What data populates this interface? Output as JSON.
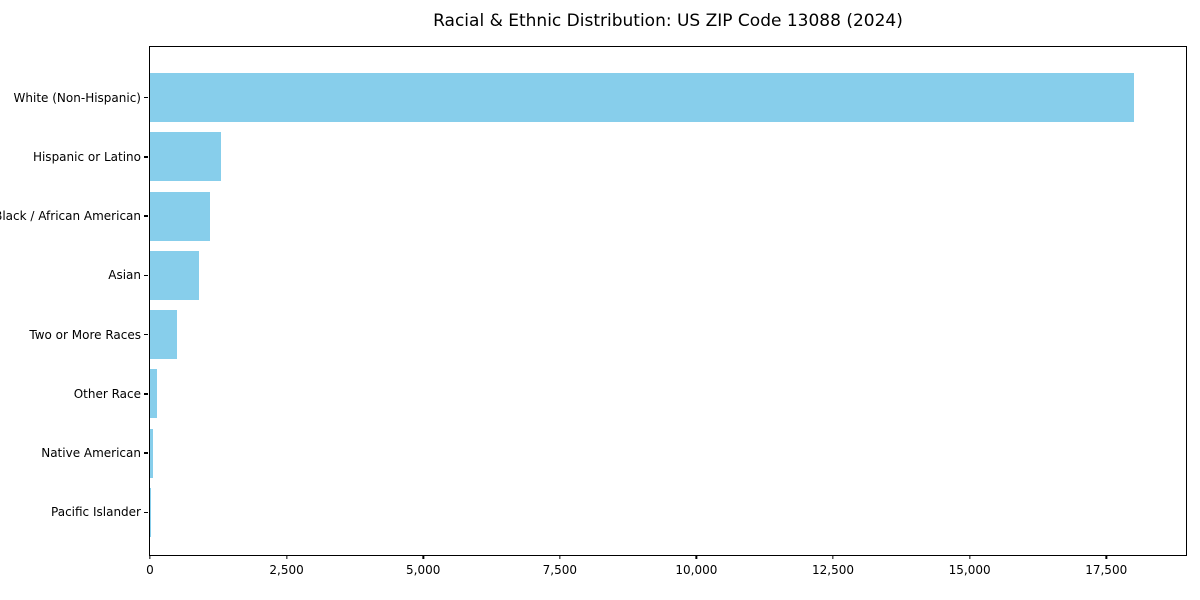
{
  "title": "Racial & Ethnic Distribution: US ZIP Code 13088 (2024)",
  "colors": {
    "bar": "#87CEEB",
    "text": "#000000",
    "spine": "#000000",
    "background": "#FFFFFF"
  },
  "chart_data": {
    "type": "bar",
    "orientation": "horizontal",
    "title": "Racial & Ethnic Distribution: US ZIP Code 13088 (2024)",
    "categories": [
      "White (Non-Hispanic)",
      "Hispanic or Latino",
      "Black / African American",
      "Asian",
      "Two or More Races",
      "Other Race",
      "Native American",
      "Pacific Islander"
    ],
    "values": [
      18000,
      1300,
      1100,
      900,
      500,
      130,
      55,
      10
    ],
    "xlabel": "",
    "ylabel": "",
    "xlim": [
      0,
      18960
    ],
    "xticks": [
      0,
      2500,
      5000,
      7500,
      10000,
      12500,
      15000,
      17500
    ],
    "xtick_labels": [
      "0",
      "2,500",
      "5,000",
      "7,500",
      "10,000",
      "12,500",
      "15,000",
      "17,500"
    ],
    "bar_color": "#87CEEB",
    "grid": false,
    "legend": null
  }
}
